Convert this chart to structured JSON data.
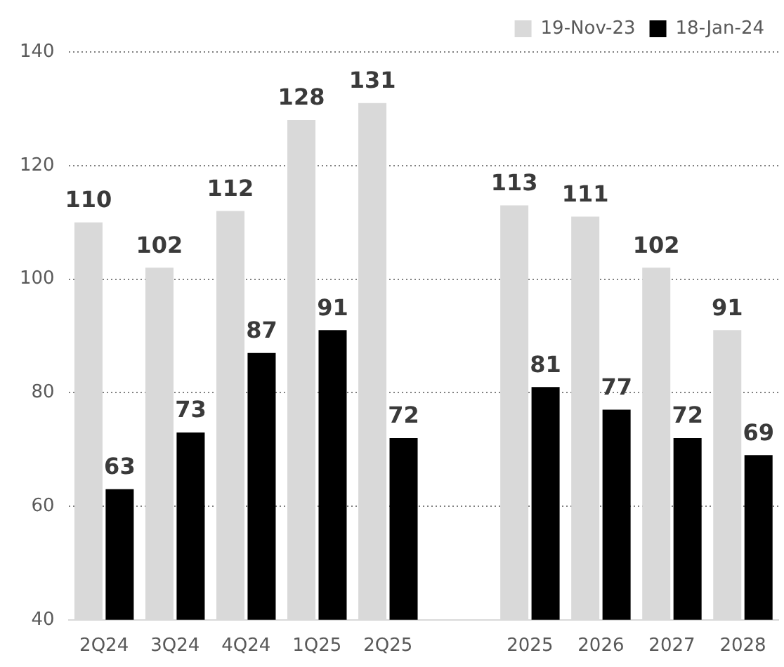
{
  "chart_data": {
    "type": "bar",
    "categories": [
      "2Q24",
      "3Q24",
      "4Q24",
      "1Q25",
      "2Q25",
      null,
      "2025",
      "2026",
      "2027",
      "2028"
    ],
    "series": [
      {
        "name": "19-Nov-23",
        "color": "#d9d9d9",
        "values": [
          110,
          102,
          112,
          128,
          131,
          null,
          113,
          111,
          102,
          91
        ]
      },
      {
        "name": "18-Jan-24",
        "color": "#000000",
        "values": [
          63,
          73,
          87,
          91,
          72,
          null,
          81,
          77,
          72,
          69
        ]
      }
    ],
    "ylim": [
      40,
      140
    ],
    "yticks": [
      40,
      60,
      80,
      100,
      120,
      140
    ],
    "grid": "y",
    "legend": "top right",
    "data_labels": true
  }
}
